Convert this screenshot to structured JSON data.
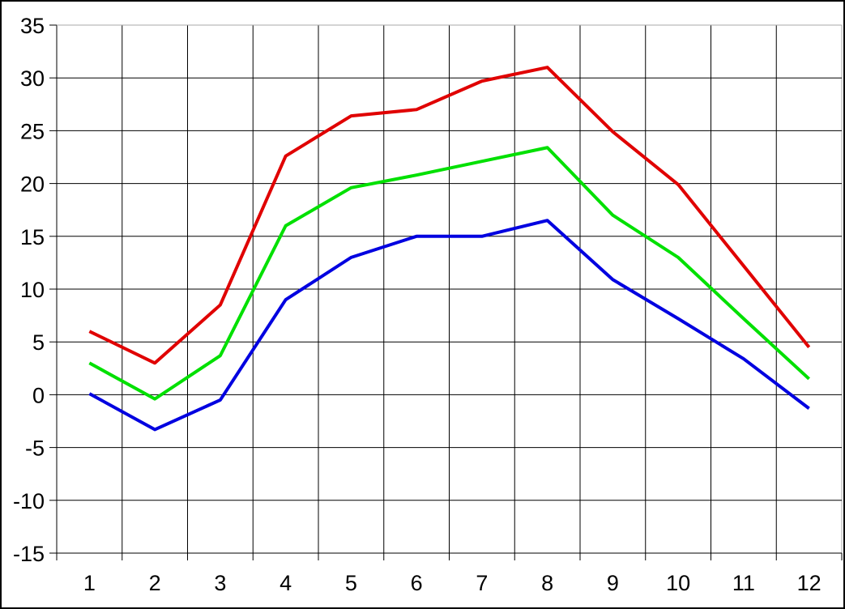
{
  "chart_data": {
    "type": "line",
    "title": "",
    "xlabel": "",
    "ylabel": "",
    "x_tick_labels": [
      "1",
      "2",
      "3",
      "4",
      "5",
      "6",
      "7",
      "8",
      "9",
      "10",
      "11",
      "12"
    ],
    "y_tick_labels": [
      "35",
      "30",
      "25",
      "20",
      "15",
      "10",
      "5",
      "0",
      "-5",
      "-10",
      "-15"
    ],
    "ylim": [
      -15,
      35
    ],
    "ytick_step": 5,
    "grid": true,
    "legend": "none",
    "series": [
      {
        "name": "red-upper-line",
        "color": "#e00000",
        "values": [
          6.0,
          3.0,
          8.5,
          22.6,
          26.4,
          27.0,
          29.7,
          31.0,
          24.9,
          19.9,
          12.2,
          4.5
        ]
      },
      {
        "name": "green-middle-line",
        "color": "#00e000",
        "values": [
          3.0,
          -0.4,
          3.7,
          16.0,
          19.6,
          20.8,
          22.1,
          23.4,
          17.0,
          13.0,
          7.2,
          1.5
        ]
      },
      {
        "name": "blue-lower-line",
        "color": "#0000e0",
        "values": [
          0.1,
          -3.3,
          -0.5,
          9.0,
          13.0,
          15.0,
          15.0,
          16.5,
          10.9,
          7.2,
          3.4,
          -1.3
        ]
      }
    ]
  },
  "colors": {
    "background": "#ffffff",
    "gridline": "#000000",
    "plot_border_top_right": "#a8a8a8",
    "axis": "#000000",
    "tick_label": "#000000"
  }
}
